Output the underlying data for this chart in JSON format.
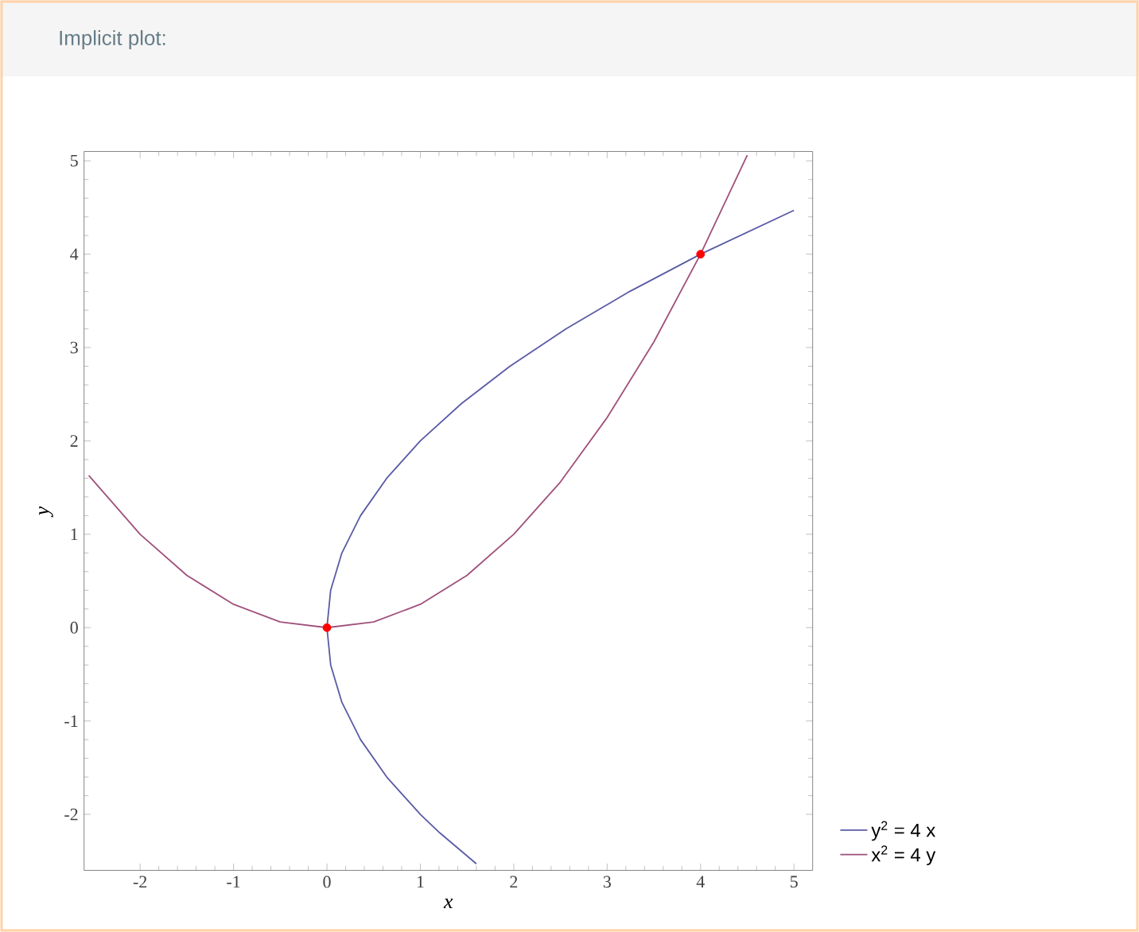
{
  "chart_data": {
    "type": "line",
    "title": "Implicit plot:",
    "xlabel": "x",
    "ylabel": "y",
    "xlim": [
      -2.6,
      5.2
    ],
    "ylim": [
      -2.6,
      5.1
    ],
    "xticks": [
      -2,
      -1,
      0,
      1,
      2,
      3,
      4,
      5
    ],
    "yticks": [
      -2,
      -1,
      0,
      1,
      2,
      3,
      4,
      5
    ],
    "legend": "bottom right",
    "grid": false,
    "series": [
      {
        "name": "y$^{2}$ = 4 x",
        "color": "#5a5aa6",
        "marker": "none",
        "x": [
          1.6,
          1.21,
          1,
          0.64,
          0.36,
          0.16,
          0.04,
          0,
          0.04,
          0.16,
          0.36,
          0.64,
          1,
          1.44,
          1.96,
          2.56,
          3.24,
          4,
          5
        ],
        "values": [
          -2.53,
          -2.2,
          -2,
          -1.6,
          -1.2,
          -0.8,
          -0.4,
          0,
          0.4,
          0.8,
          1.2,
          1.6,
          2,
          2.4,
          2.8,
          3.2,
          3.6,
          4,
          4.47
        ]
      },
      {
        "name": "x$^{2}$ = 4 y",
        "color": "#a0507a",
        "marker": "none",
        "x": [
          -2.55,
          -2,
          -1.5,
          -1,
          -0.5,
          0,
          0.5,
          1,
          1.5,
          2,
          2.5,
          3,
          3.5,
          4,
          4.5
        ],
        "values": [
          1.63,
          1,
          0.56,
          0.25,
          0.06,
          0,
          0.06,
          0.25,
          0.56,
          1,
          1.56,
          2.25,
          3.06,
          4,
          5.06
        ]
      },
      {
        "type": "scatter",
        "color": "#ff0000",
        "marker": "circle",
        "x": [
          0,
          4
        ],
        "values": [
          0,
          4
        ]
      }
    ]
  }
}
